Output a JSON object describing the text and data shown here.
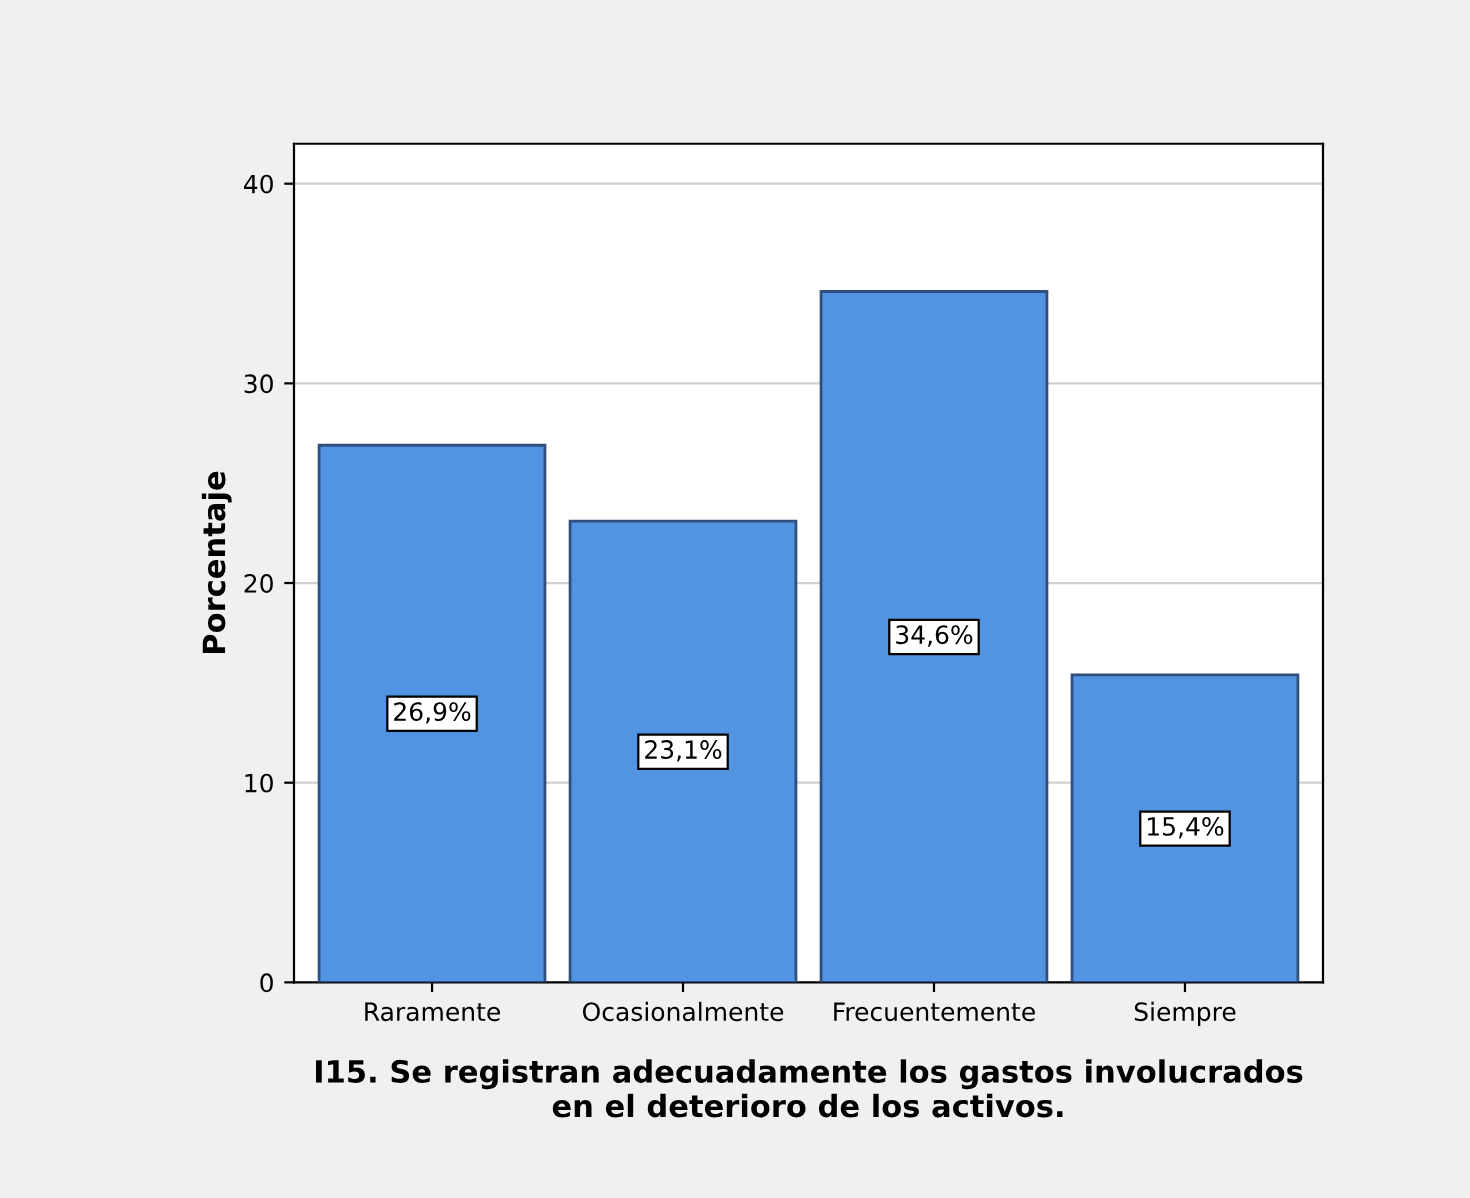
{
  "chart_data": {
    "type": "bar",
    "xlabel": "I15. Se registran adecuadamente los gastos involucrados\nen el deterioro de los activos.",
    "ylabel": "Porcentaje",
    "categories": [
      "Raramente",
      "Ocasionalmente",
      "Frecuentemente",
      "Siempre"
    ],
    "values": [
      26.9,
      23.1,
      34.6,
      15.4
    ],
    "value_labels": [
      "26,9%",
      "23,1%",
      "34,6%",
      "15,4%"
    ],
    "color": "#5294e2",
    "ylim": [
      0,
      42
    ],
    "yticks": [
      0,
      10,
      20,
      30,
      40
    ],
    "grid": "y"
  }
}
